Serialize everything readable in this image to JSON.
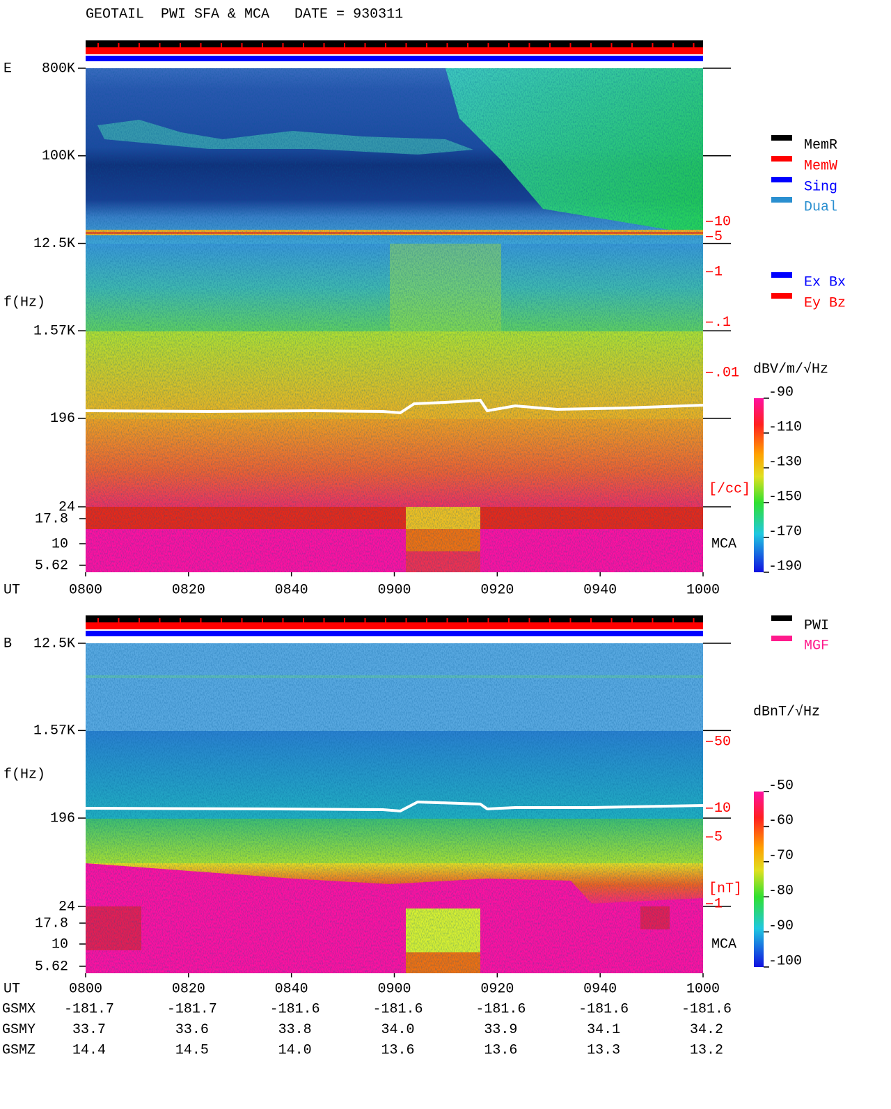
{
  "title": "GEOTAIL  PWI SFA & MCA   DATE = 930311",
  "chart_data": [
    {
      "type": "spectrogram",
      "panel_label": "E",
      "ylabel": "f(Hz)",
      "xlabel": "UT",
      "yscale": "log",
      "ylim": [
        24,
        800000
      ],
      "yticks": [
        {
          "value": 800000,
          "label": "800K"
        },
        {
          "value": 100000,
          "label": "100K"
        },
        {
          "value": 12500,
          "label": "12.5K"
        },
        {
          "value": 1570,
          "label": "1.57K"
        },
        196,
        24
      ],
      "mca_label": "MCA",
      "mca_ticks": [
        17.8,
        10,
        5.62
      ],
      "xlim": [
        480,
        600
      ],
      "xticks": [
        {
          "value": 480,
          "label": "0800"
        },
        {
          "value": 500,
          "label": "0820"
        },
        {
          "value": 520,
          "label": "0840"
        },
        {
          "value": 540,
          "label": "0900"
        },
        {
          "value": 560,
          "label": "0920"
        },
        {
          "value": 580,
          "label": "0940"
        },
        {
          "value": 600,
          "label": "1000"
        }
      ],
      "y2scale": "log",
      "y2lim": [
        0.01,
        10
      ],
      "y2ticks": [
        10,
        5,
        1,
        {
          "value": 0.1,
          "label": ".1"
        },
        {
          "value": 0.01,
          "label": ".01"
        }
      ],
      "y2label": "[/cc]",
      "y2color": "#ff0000",
      "legend": [
        {
          "name": "MemR",
          "color": "#000000"
        },
        {
          "name": "MemW",
          "color": "#ff0000"
        },
        {
          "name": "Sing",
          "color": "#0000ff"
        },
        {
          "name": "Dual",
          "color": "#2a8fd0"
        }
      ],
      "legend2": [
        {
          "name": "Ex Bx",
          "color": "#0000ff"
        },
        {
          "name": "Ey Bz",
          "color": "#ff0000"
        }
      ],
      "colorbar": {
        "label": "dBV/m/√Hz",
        "lim": [
          -190,
          -90
        ],
        "ticks": [
          -90,
          -110,
          -130,
          -150,
          -170,
          -190
        ]
      }
    },
    {
      "type": "spectrogram",
      "panel_label": "B",
      "ylabel": "f(Hz)",
      "xlabel": "UT",
      "yscale": "log",
      "ylim": [
        24,
        12500
      ],
      "yticks": [
        {
          "value": 12500,
          "label": "12.5K"
        },
        {
          "value": 1570,
          "label": "1.57K"
        },
        196,
        24
      ],
      "mca_label": "MCA",
      "mca_ticks": [
        17.8,
        10,
        5.62
      ],
      "xlim": [
        480,
        600
      ],
      "xticks": [
        {
          "value": 480,
          "label": "0800"
        },
        {
          "value": 500,
          "label": "0820"
        },
        {
          "value": 520,
          "label": "0840"
        },
        {
          "value": 540,
          "label": "0900"
        },
        {
          "value": 560,
          "label": "0920"
        },
        {
          "value": 580,
          "label": "0940"
        },
        {
          "value": 600,
          "label": "1000"
        }
      ],
      "y2scale": "log",
      "y2lim": [
        1,
        50
      ],
      "y2ticks": [
        50,
        10,
        5,
        1
      ],
      "y2label": "[nT]",
      "y2color": "#ff0000",
      "legend": [
        {
          "name": "PWI",
          "color": "#000000"
        },
        {
          "name": "MGF",
          "color": "#ff1a8c"
        }
      ],
      "colorbar": {
        "label": "dBnT/√Hz",
        "lim": [
          -100,
          -50
        ],
        "ticks": [
          -50,
          -60,
          -70,
          -80,
          -90,
          -100
        ]
      }
    }
  ],
  "orbit": {
    "row_labels": [
      "GSMX",
      "GSMY",
      "GSMZ"
    ],
    "rows": [
      [
        "-181.7",
        "-181.7",
        "-181.6",
        "-181.6",
        "-181.6",
        "-181.6",
        "-181.6"
      ],
      [
        "33.7",
        "33.6",
        "33.8",
        "34.0",
        "33.9",
        "34.1",
        "34.2"
      ],
      [
        "14.4",
        "14.5",
        "14.0",
        "13.6",
        "13.6",
        "13.3",
        "13.2"
      ]
    ]
  }
}
